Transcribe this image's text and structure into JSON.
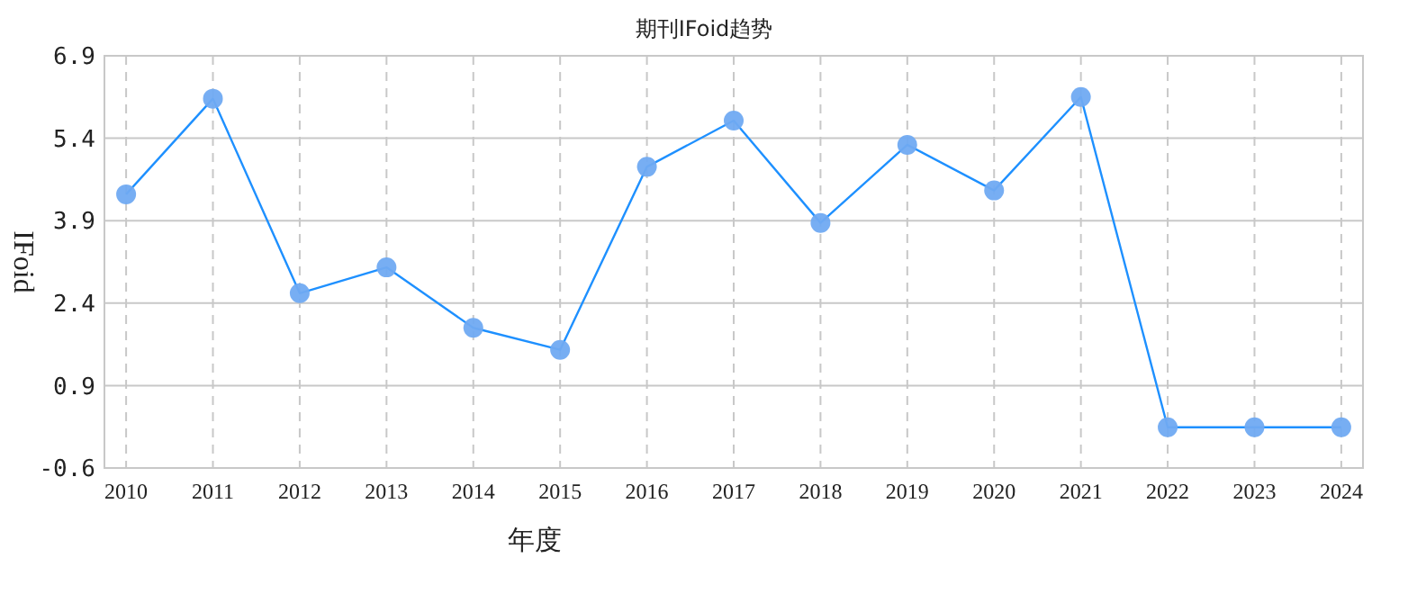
{
  "chart_data": {
    "type": "line",
    "title": "期刊IFoid趋势",
    "xlabel": "年度",
    "ylabel": "IFoid",
    "categories": [
      "2010",
      "2011",
      "2012",
      "2013",
      "2014",
      "2015",
      "2016",
      "2017",
      "2018",
      "2019",
      "2020",
      "2021",
      "2022",
      "2023",
      "2024"
    ],
    "series": [
      {
        "color": "#1e90ff",
        "values": [
          4.38,
          6.12,
          2.58,
          3.05,
          1.95,
          1.55,
          4.88,
          5.72,
          3.86,
          5.28,
          4.45,
          6.15,
          0.14,
          0.14,
          0.14
        ]
      }
    ],
    "ylim": [
      -0.6,
      6.9
    ],
    "yticks": [
      -0.6,
      0.9,
      2.4,
      3.9,
      5.4,
      6.9
    ],
    "grid": true,
    "marker": "circle",
    "line_style": "solid"
  }
}
